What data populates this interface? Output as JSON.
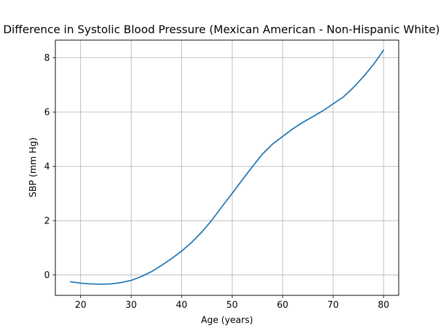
{
  "chart_data": {
    "type": "line",
    "title": "Difference in Systolic Blood Pressure (Mexican American - Non-Hispanic White)",
    "xlabel": "Age (years)",
    "ylabel": "SBP (mm Hg)",
    "xlim": [
      15,
      83
    ],
    "ylim": [
      -0.75,
      8.65
    ],
    "xticks": [
      20,
      30,
      40,
      50,
      60,
      70,
      80
    ],
    "yticks": [
      0,
      2,
      4,
      6,
      8
    ],
    "grid": true,
    "series": [
      {
        "color": "#1f77b4",
        "x": [
          18,
          20,
          22,
          24,
          26,
          28,
          30,
          32,
          34,
          36,
          38,
          40,
          42,
          44,
          46,
          48,
          50,
          52,
          54,
          56,
          58,
          60,
          62,
          64,
          66,
          68,
          70,
          72,
          74,
          76,
          78,
          80
        ],
        "y": [
          -0.25,
          -0.3,
          -0.33,
          -0.34,
          -0.33,
          -0.28,
          -0.2,
          -0.06,
          0.12,
          0.35,
          0.6,
          0.88,
          1.2,
          1.58,
          2.02,
          2.52,
          3.0,
          3.5,
          3.98,
          4.45,
          4.82,
          5.1,
          5.38,
          5.62,
          5.83,
          6.05,
          6.3,
          6.55,
          6.9,
          7.3,
          7.75,
          8.28
        ]
      }
    ]
  }
}
